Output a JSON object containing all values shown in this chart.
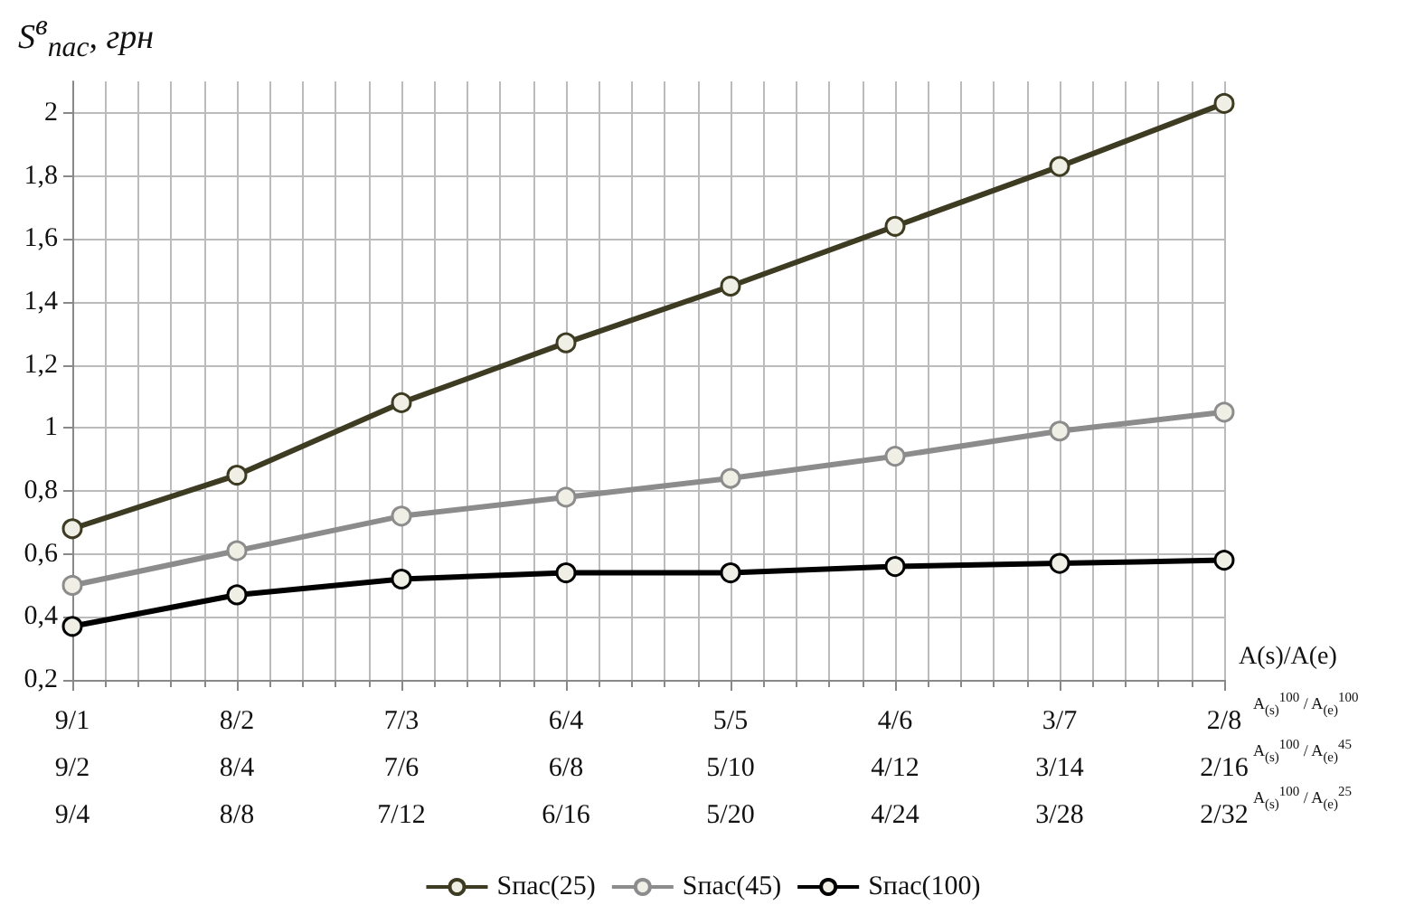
{
  "chart_data": {
    "type": "line",
    "ylabel": "S$^{в}$$_{пас}$, грн",
    "xlabel": "A(s)/A(e)",
    "categories": [
      "9/1\n9/2\n9/4",
      "8/2\n8/4\n8/8",
      "7/3\n7/6\n7/12",
      "6/4\n6/8\n6/16",
      "5/5\n5/10\n5/20",
      "4/6\n4/12\n4/24",
      "3/7\n3/14\n3/28",
      "2/8\n2/16\n2/32"
    ],
    "series": [
      {
        "name": "Sпас(25)",
        "color": "#3d3b22",
        "values": [
          0.68,
          0.85,
          1.08,
          1.27,
          1.45,
          1.64,
          1.83,
          2.03
        ]
      },
      {
        "name": "Sпас(45)",
        "color": "#8c8c8c",
        "values": [
          0.5,
          0.61,
          0.72,
          0.78,
          0.84,
          0.91,
          0.99,
          1.05
        ]
      },
      {
        "name": "Sпас(100)",
        "color": "#000000",
        "values": [
          0.37,
          0.47,
          0.52,
          0.54,
          0.54,
          0.56,
          0.57,
          0.58
        ]
      }
    ],
    "annotations": [
      "A$_{(s)}$$^{100}$ / A$_{(e)}$$^{100}$",
      "A$_{(s)}$$^{100}$ / A$_{(e)}$$^{45}$",
      "A$_{(s)}$$^{100}$ / A$_{(e)}$$^{25}$"
    ],
    "ylim": [
      0.2,
      2.1
    ],
    "yticks": [
      {
        "value": 0.2,
        "label": "0,2"
      },
      {
        "value": 0.4,
        "label": "0,4"
      },
      {
        "value": 0.6,
        "label": "0,6"
      },
      {
        "value": 0.8,
        "label": "0,8"
      },
      1,
      {
        "value": 1.2,
        "label": "1,2"
      },
      {
        "value": 1.4,
        "label": "1,4"
      },
      {
        "value": 1.6,
        "label": "1,6"
      },
      {
        "value": 1.8,
        "label": "1,8"
      },
      2
    ],
    "grid": true,
    "legend": "bottom",
    "marker": "circle",
    "line_style": "solid"
  }
}
